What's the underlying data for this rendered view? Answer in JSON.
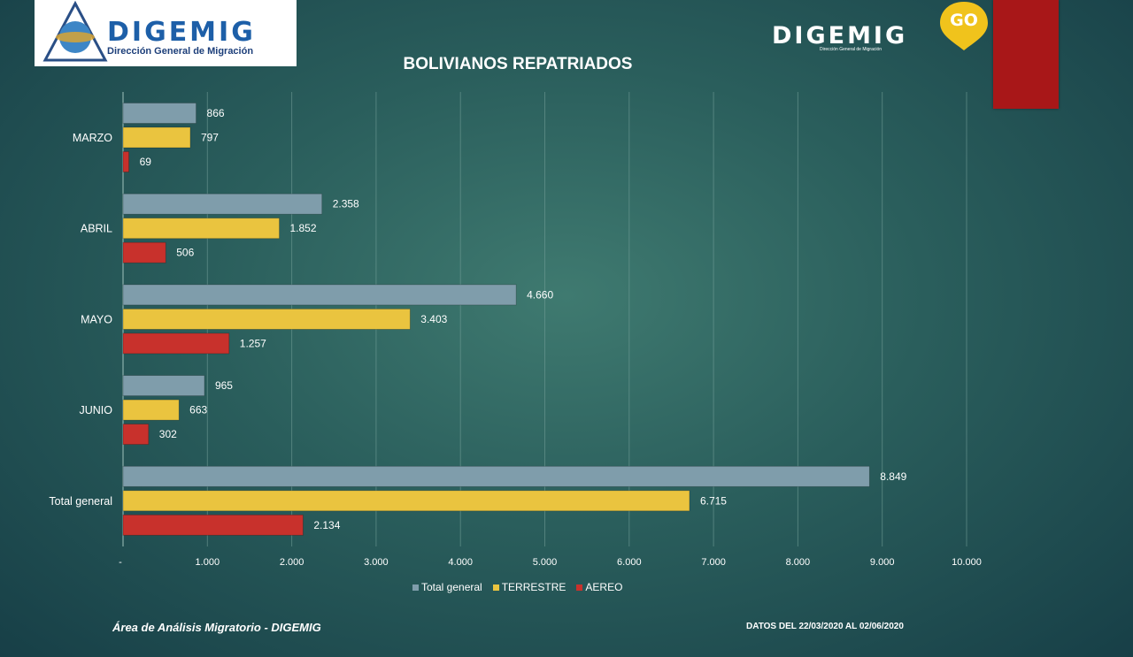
{
  "logos": {
    "left_brand": "DIGEMIG",
    "left_sub": "Dirección General de Migración",
    "right_brand": "DIGEMIG",
    "right_badge": "GO",
    "right_sub": "Dirección General de Migración"
  },
  "footer": {
    "left": "Área de Análisis Migratorio - DIGEMIG",
    "right": "DATOS DEL 22/03/2020 AL 02/06/2020"
  },
  "colors": {
    "total": "#7f9dab",
    "terrestre": "#eac43f",
    "aereo": "#c8312c",
    "grid": "#6f9b95",
    "accent_red": "#a81718"
  },
  "chart_data": {
    "type": "bar",
    "orientation": "horizontal",
    "title": "BOLIVIANOS REPATRIADOS",
    "categories": [
      "MARZO",
      "ABRIL",
      "MAYO",
      "JUNIO",
      "Total general"
    ],
    "series": [
      {
        "name": "Total general",
        "values": [
          866,
          2358,
          4660,
          965,
          8849
        ],
        "labels": [
          "866",
          "2.358",
          "4.660",
          "965",
          "8.849"
        ]
      },
      {
        "name": "TERRESTRE",
        "values": [
          797,
          1852,
          3403,
          663,
          6715
        ],
        "labels": [
          "797",
          "1.852",
          "3.403",
          "663",
          "6.715"
        ]
      },
      {
        "name": "AEREO",
        "values": [
          69,
          506,
          1257,
          302,
          2134
        ],
        "labels": [
          "69",
          "506",
          "1.257",
          "302",
          "2.134"
        ]
      }
    ],
    "xlim": [
      0,
      10000
    ],
    "xticks": [
      0,
      1000,
      2000,
      3000,
      4000,
      5000,
      6000,
      7000,
      8000,
      9000,
      10000
    ],
    "xtick_labels": [
      "-",
      "1.000",
      "2.000",
      "3.000",
      "4.000",
      "5.000",
      "6.000",
      "7.000",
      "8.000",
      "9.000",
      "10.000"
    ],
    "grid": true,
    "legend": "bottom"
  }
}
